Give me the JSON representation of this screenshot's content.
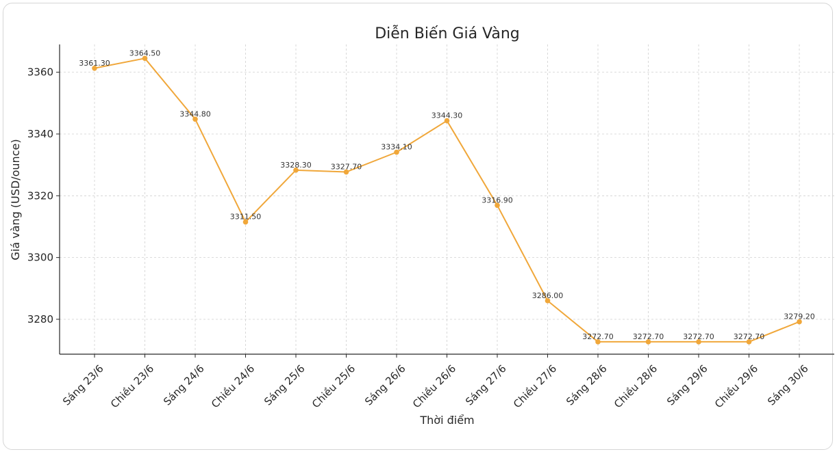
{
  "chart_data": {
    "type": "line",
    "title": "Diễn Biến Giá Vàng",
    "xlabel": "Thời điểm",
    "ylabel": "Giá vàng (USD/ounce)",
    "categories": [
      "Sáng 23/6",
      "Chiều 23/6",
      "Sáng 24/6",
      "Chiều 24/6",
      "Sáng 25/6",
      "Chiều 25/6",
      "Sáng 26/6",
      "Chiều 26/6",
      "Sáng 27/6",
      "Chiều 27/6",
      "Sáng 28/6",
      "Chiều 28/6",
      "Sáng 29/6",
      "Chiều 29/6",
      "Sáng 30/6"
    ],
    "series": [
      {
        "values": [
          3361.3,
          3364.5,
          3344.8,
          3311.5,
          3328.3,
          3327.7,
          3334.1,
          3344.3,
          3316.9,
          3286.0,
          3272.7,
          3272.7,
          3272.7,
          3272.7,
          3279.2
        ],
        "labels": [
          "3361.30",
          "3364.50",
          "3344.80",
          "3311.50",
          "3328.30",
          "3327.70",
          "3334.10",
          "3344.30",
          "3316.90",
          "3286.00",
          "3272.70",
          "3272.70",
          "3272.70",
          "3272.70",
          "3279.20"
        ]
      }
    ],
    "yticks": [
      3280,
      3300,
      3320,
      3340,
      3360
    ],
    "ylim": [
      3268.7,
      3369.0
    ],
    "grid": true,
    "color": "#F0A73A"
  }
}
